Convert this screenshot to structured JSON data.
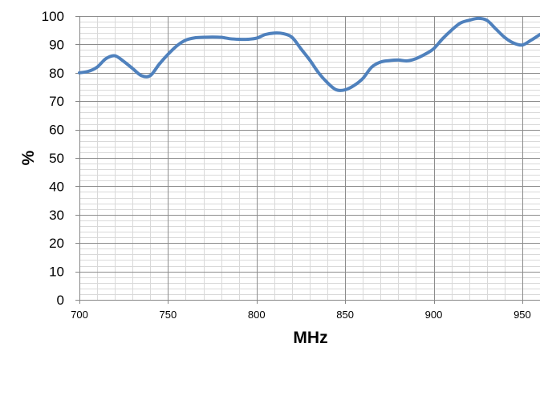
{
  "chart_data": {
    "type": "line",
    "xlabel": "MHz",
    "ylabel": "%",
    "xlim": [
      700,
      960
    ],
    "ylim": [
      0,
      100
    ],
    "x_ticks": [
      700,
      750,
      800,
      850,
      900,
      950
    ],
    "y_ticks": [
      0,
      10,
      20,
      30,
      40,
      50,
      60,
      70,
      80,
      90,
      100
    ],
    "x_minor_step": 10,
    "y_minor_step": 2,
    "grid": true,
    "legend": "none",
    "line_color": "#4F81BD",
    "series": [
      {
        "x": [
          700,
          705,
          710,
          715,
          720,
          725,
          730,
          735,
          740,
          745,
          750,
          755,
          760,
          765,
          770,
          775,
          780,
          785,
          790,
          795,
          800,
          805,
          810,
          815,
          820,
          825,
          830,
          835,
          840,
          845,
          850,
          855,
          860,
          865,
          870,
          875,
          880,
          885,
          890,
          895,
          900,
          905,
          910,
          915,
          920,
          925,
          930,
          935,
          940,
          945,
          950,
          955,
          960
        ],
        "values": [
          80,
          80.5,
          82,
          85,
          86,
          84,
          81.5,
          79,
          79,
          83,
          86.5,
          89.5,
          91.5,
          92.3,
          92.5,
          92.6,
          92.5,
          92,
          91.8,
          91.8,
          92.2,
          93.5,
          94,
          93.8,
          92.5,
          88.5,
          84.5,
          80,
          76.5,
          74,
          74,
          75.5,
          78,
          82,
          83.8,
          84.3,
          84.5,
          84.2,
          85,
          86.5,
          88.5,
          92,
          95,
          97.5,
          98.5,
          99.2,
          98.5,
          95.5,
          92.5,
          90.5,
          89.8,
          91.5,
          93.5
        ]
      }
    ]
  }
}
